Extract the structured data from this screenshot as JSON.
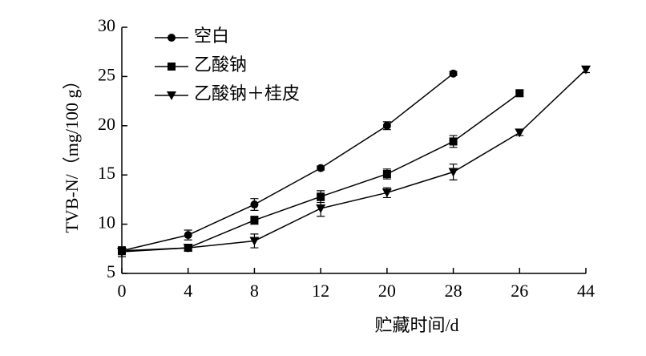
{
  "chart_data": {
    "type": "line",
    "x_label": "贮藏时间/d",
    "y_label": "TVB-N/（mg/100 g）",
    "categories": [
      "0",
      "4",
      "8",
      "12",
      "20",
      "28",
      "26",
      "44"
    ],
    "series": [
      {
        "name": "空白",
        "color": "#000000",
        "marker": "circle",
        "values": [
          7.3,
          8.9,
          12.0,
          15.7,
          20.0,
          25.3,
          null,
          null
        ],
        "errors": [
          0.3,
          0.5,
          0.6,
          0.2,
          0.4,
          0.2,
          null,
          null
        ]
      },
      {
        "name": "乙酸钠",
        "color": "#000000",
        "marker": "square",
        "values": [
          7.3,
          7.6,
          10.4,
          12.8,
          15.1,
          18.4,
          23.3,
          null
        ],
        "errors": [
          0.4,
          0.3,
          0.4,
          0.6,
          0.5,
          0.6,
          0.3,
          null
        ]
      },
      {
        "name": "乙酸钠＋桂皮",
        "color": "#000000",
        "marker": "triangle-down",
        "values": [
          7.2,
          7.6,
          8.3,
          11.6,
          13.2,
          15.3,
          19.3,
          25.7
        ],
        "errors": [
          0.5,
          0.3,
          0.7,
          0.8,
          0.5,
          0.8,
          0.3,
          0.3
        ]
      }
    ],
    "ylim": [
      5,
      30
    ],
    "yticks": [
      5,
      10,
      15,
      20,
      25,
      30
    ],
    "legend": "upper-left"
  }
}
